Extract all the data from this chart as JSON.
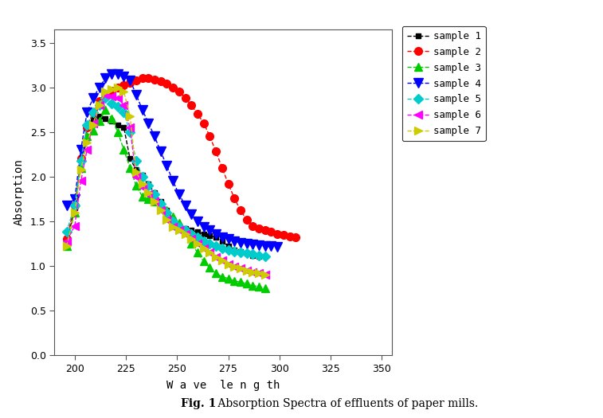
{
  "xlabel": "W a ve  le n g th",
  "ylabel": "Absorption",
  "xlim": [
    190,
    355
  ],
  "ylim": [
    0.0,
    3.65
  ],
  "xticks": [
    200,
    225,
    250,
    275,
    300,
    325,
    350
  ],
  "yticks": [
    0.0,
    0.5,
    1.0,
    1.5,
    2.0,
    2.5,
    3.0,
    3.5
  ],
  "background": "#ffffff",
  "samples": [
    {
      "label": "sample 1",
      "color": "#000000",
      "marker": "s",
      "markersize": 5,
      "x": [
        196,
        200,
        203,
        206,
        209,
        212,
        215,
        218,
        221,
        224,
        227,
        230,
        233,
        236,
        239,
        242,
        245,
        248,
        251,
        254,
        257,
        260,
        263,
        266,
        269,
        272,
        275,
        278,
        281,
        284,
        287,
        290
      ],
      "y": [
        1.25,
        1.65,
        2.2,
        2.55,
        2.65,
        2.68,
        2.65,
        2.62,
        2.58,
        2.55,
        2.2,
        2.08,
        2.02,
        1.92,
        1.82,
        1.72,
        1.62,
        1.52,
        1.45,
        1.42,
        1.4,
        1.38,
        1.36,
        1.34,
        1.32,
        1.28,
        1.22,
        1.18,
        1.16,
        1.14,
        1.12,
        1.11
      ]
    },
    {
      "label": "sample 2",
      "color": "#ff0000",
      "marker": "o",
      "markersize": 7,
      "x": [
        196,
        200,
        203,
        206,
        209,
        212,
        215,
        218,
        221,
        224,
        227,
        230,
        233,
        236,
        239,
        242,
        245,
        248,
        251,
        254,
        257,
        260,
        263,
        266,
        269,
        272,
        275,
        278,
        281,
        284,
        287,
        290,
        293,
        296,
        299,
        302,
        305,
        308
      ],
      "y": [
        1.3,
        1.68,
        2.2,
        2.55,
        2.72,
        2.85,
        2.92,
        2.96,
        3.0,
        3.02,
        3.05,
        3.08,
        3.1,
        3.1,
        3.09,
        3.07,
        3.04,
        3.0,
        2.95,
        2.88,
        2.8,
        2.7,
        2.6,
        2.45,
        2.28,
        2.1,
        1.92,
        1.76,
        1.62,
        1.52,
        1.45,
        1.42,
        1.4,
        1.38,
        1.36,
        1.35,
        1.33,
        1.32
      ]
    },
    {
      "label": "sample 3",
      "color": "#00cc00",
      "marker": "^",
      "markersize": 7,
      "x": [
        196,
        200,
        203,
        206,
        209,
        212,
        215,
        218,
        221,
        224,
        227,
        230,
        233,
        236,
        239,
        242,
        245,
        248,
        251,
        254,
        257,
        260,
        263,
        266,
        269,
        272,
        275,
        278,
        281,
        284,
        287,
        290,
        293
      ],
      "y": [
        1.22,
        1.6,
        2.1,
        2.45,
        2.52,
        2.62,
        2.75,
        2.65,
        2.5,
        2.3,
        2.1,
        1.9,
        1.78,
        1.75,
        1.72,
        1.68,
        1.62,
        1.55,
        1.48,
        1.4,
        1.25,
        1.15,
        1.05,
        0.98,
        0.92,
        0.88,
        0.86,
        0.83,
        0.82,
        0.8,
        0.78,
        0.77,
        0.75
      ]
    },
    {
      "label": "sample 4",
      "color": "#0000ff",
      "marker": "v",
      "markersize": 8,
      "x": [
        196,
        200,
        203,
        206,
        209,
        212,
        215,
        218,
        221,
        224,
        227,
        230,
        233,
        236,
        239,
        242,
        245,
        248,
        251,
        254,
        257,
        260,
        263,
        266,
        269,
        272,
        275,
        278,
        281,
        284,
        287,
        290,
        293,
        296,
        299
      ],
      "y": [
        1.68,
        1.75,
        2.3,
        2.72,
        2.88,
        3.0,
        3.1,
        3.15,
        3.15,
        3.12,
        3.08,
        2.92,
        2.75,
        2.6,
        2.45,
        2.28,
        2.12,
        1.95,
        1.8,
        1.68,
        1.58,
        1.5,
        1.44,
        1.4,
        1.36,
        1.32,
        1.3,
        1.28,
        1.26,
        1.25,
        1.24,
        1.23,
        1.22,
        1.22,
        1.21
      ]
    },
    {
      "label": "sample 5",
      "color": "#00cccc",
      "marker": "D",
      "markersize": 6,
      "x": [
        196,
        200,
        203,
        206,
        209,
        212,
        215,
        218,
        221,
        224,
        227,
        230,
        233,
        236,
        239,
        242,
        245,
        248,
        251,
        254,
        257,
        260,
        263,
        266,
        269,
        272,
        275,
        278,
        281,
        284,
        287,
        290,
        293
      ],
      "y": [
        1.38,
        1.68,
        2.18,
        2.58,
        2.72,
        2.8,
        2.88,
        2.82,
        2.78,
        2.72,
        2.5,
        2.18,
        2.0,
        1.9,
        1.8,
        1.7,
        1.6,
        1.5,
        1.44,
        1.4,
        1.36,
        1.32,
        1.28,
        1.25,
        1.22,
        1.2,
        1.18,
        1.16,
        1.15,
        1.14,
        1.13,
        1.12,
        1.11
      ]
    },
    {
      "label": "sample 6",
      "color": "#ff00ff",
      "marker": "4",
      "markersize": 8,
      "x": [
        196,
        200,
        203,
        206,
        209,
        212,
        215,
        218,
        221,
        224,
        227,
        230,
        233,
        236,
        239,
        242,
        245,
        248,
        251,
        254,
        257,
        260,
        263,
        266,
        269,
        272,
        275,
        278,
        281,
        284,
        287,
        290,
        293
      ],
      "y": [
        1.28,
        1.45,
        1.95,
        2.3,
        2.6,
        2.8,
        2.92,
        2.9,
        2.88,
        2.8,
        2.55,
        2.0,
        1.88,
        1.8,
        1.72,
        1.62,
        1.52,
        1.44,
        1.4,
        1.36,
        1.3,
        1.25,
        1.2,
        1.15,
        1.1,
        1.06,
        1.02,
        0.99,
        0.97,
        0.95,
        0.93,
        0.92,
        0.9
      ]
    },
    {
      "label": "sample 7",
      "color": "#cccc00",
      "marker": "3",
      "markersize": 8,
      "x": [
        196,
        200,
        203,
        206,
        209,
        212,
        215,
        218,
        221,
        224,
        227,
        230,
        233,
        236,
        239,
        242,
        245,
        248,
        251,
        254,
        257,
        260,
        263,
        266,
        269,
        272,
        275,
        278,
        281,
        284,
        287,
        290,
        293
      ],
      "y": [
        1.22,
        1.6,
        2.08,
        2.38,
        2.58,
        2.8,
        2.95,
        2.98,
        3.0,
        2.95,
        2.68,
        2.05,
        1.92,
        1.82,
        1.72,
        1.62,
        1.52,
        1.44,
        1.4,
        1.36,
        1.3,
        1.25,
        1.2,
        1.15,
        1.1,
        1.06,
        1.02,
        0.99,
        0.97,
        0.95,
        0.93,
        0.92,
        0.9
      ]
    }
  ]
}
